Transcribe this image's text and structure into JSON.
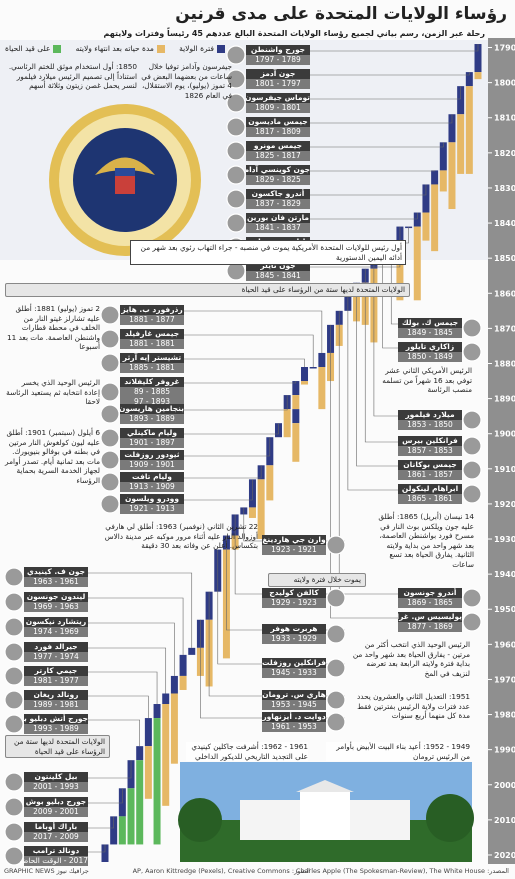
{
  "chart_data": {
    "type": "timeline",
    "title": "رؤساء الولايات المتحدة على مدى قرنين",
    "subtitle": "رحلة عبر الزمن، رسم بياني لجميع رؤساء الولايات المتحدة البالغ عددهم 45 رئيساً وفترات ولايتهم",
    "legend": [
      {
        "name": "فترة الولاية",
        "color": "#2f3b85"
      },
      {
        "name": "مدة حياته بعد انتهاء ولايته",
        "color": "#e6b866"
      },
      {
        "name": "على قيد الحياة",
        "color": "#5cb85c"
      }
    ],
    "ylim": [
      1787,
      2022
    ],
    "yticks": [
      1790,
      1800,
      1810,
      1820,
      1830,
      1840,
      1850,
      1860,
      1870,
      1880,
      1890,
      1900,
      1910,
      1920,
      1930,
      1940,
      1950,
      1960,
      1970,
      1980,
      1990,
      2000,
      2010,
      2020
    ],
    "presidents": [
      {
        "name": "جورج واشنطن",
        "years": [
          "1789 - 1797"
        ],
        "terms": [
          [
            1789,
            1797
          ]
        ],
        "died": 1799
      },
      {
        "name": "جون آدمز",
        "years": [
          "1797 - 1801"
        ],
        "terms": [
          [
            1797,
            1801
          ]
        ],
        "died": 1826
      },
      {
        "name": "توماس جيفرسون",
        "years": [
          "1801 - 1809"
        ],
        "terms": [
          [
            1801,
            1809
          ]
        ],
        "died": 1826
      },
      {
        "name": "جيمس ماديسون",
        "years": [
          "1809 - 1817"
        ],
        "terms": [
          [
            1809,
            1817
          ]
        ],
        "died": 1836
      },
      {
        "name": "جيمس مونرو",
        "years": [
          "1817 - 1825"
        ],
        "terms": [
          [
            1817,
            1825
          ]
        ],
        "died": 1831
      },
      {
        "name": "جون كوينسي آدامز",
        "years": [
          "1825 - 1829"
        ],
        "terms": [
          [
            1825,
            1829
          ]
        ],
        "died": 1848
      },
      {
        "name": "أندرو جاكسون",
        "years": [
          "1829 - 1837"
        ],
        "terms": [
          [
            1829,
            1837
          ]
        ],
        "died": 1845
      },
      {
        "name": "مارتن فان بورين",
        "years": [
          "1837 - 1841"
        ],
        "terms": [
          [
            1837,
            1841
          ]
        ],
        "died": 1862
      },
      {
        "name": "وليام هنري هاريسون",
        "years": [
          "1841 - 1841"
        ],
        "terms": [
          [
            1841,
            1841
          ]
        ],
        "died": 1841
      },
      {
        "name": "جون تايلر",
        "years": [
          "1841 - 1845"
        ],
        "terms": [
          [
            1841,
            1845
          ]
        ],
        "died": 1862
      },
      {
        "name": "جيمس ك. بولك",
        "years": [
          "1845 - 1849"
        ],
        "terms": [
          [
            1845,
            1849
          ]
        ],
        "died": 1849
      },
      {
        "name": "زاكاري تايلور",
        "years": [
          "1849 - 1850"
        ],
        "terms": [
          [
            1849,
            1850
          ]
        ],
        "died": 1850
      },
      {
        "name": "ميلارد فيلمور",
        "years": [
          "1850 - 1853"
        ],
        "terms": [
          [
            1850,
            1853
          ]
        ],
        "died": 1874
      },
      {
        "name": "فرانكلين بيرس",
        "years": [
          "1853 - 1857"
        ],
        "terms": [
          [
            1853,
            1857
          ]
        ],
        "died": 1869
      },
      {
        "name": "جيمس بوكانان",
        "years": [
          "1857 - 1861"
        ],
        "terms": [
          [
            1857,
            1861
          ]
        ],
        "died": 1868
      },
      {
        "name": "ابراهام لينكولن",
        "years": [
          "1861 - 1865"
        ],
        "terms": [
          [
            1861,
            1865
          ]
        ],
        "died": 1865
      },
      {
        "name": "أندرو جونسون",
        "years": [
          "1865 - 1869"
        ],
        "terms": [
          [
            1865,
            1869
          ]
        ],
        "died": 1875
      },
      {
        "name": "يوليسيس س. غرانت",
        "years": [
          "1869 - 1877"
        ],
        "terms": [
          [
            1869,
            1877
          ]
        ],
        "died": 1885
      },
      {
        "name": "رذرفورد ب. هايز",
        "years": [
          "1877 - 1881"
        ],
        "terms": [
          [
            1877,
            1881
          ]
        ],
        "died": 1893
      },
      {
        "name": "جيمس غارفيلد",
        "years": [
          "1881 - 1881"
        ],
        "terms": [
          [
            1881,
            1881
          ]
        ],
        "died": 1881
      },
      {
        "name": "تشيستر إيه آرثر",
        "years": [
          "1881 - 1885"
        ],
        "terms": [
          [
            1881,
            1885
          ]
        ],
        "died": 1886
      },
      {
        "name": "غروفر كليفلاند",
        "years": [
          "1885 - 89",
          "1893 - 97"
        ],
        "terms": [
          [
            1885,
            1889
          ],
          [
            1893,
            1897
          ]
        ],
        "died": 1908
      },
      {
        "name": "بنجامين هاريسون",
        "years": [
          "1889 - 1893"
        ],
        "terms": [
          [
            1889,
            1893
          ]
        ],
        "died": 1901
      },
      {
        "name": "وليام ماكينلي",
        "years": [
          "1897 - 1901"
        ],
        "terms": [
          [
            1897,
            1901
          ]
        ],
        "died": 1901
      },
      {
        "name": "ثيودور روزفلت",
        "years": [
          "1901 - 1909"
        ],
        "terms": [
          [
            1901,
            1909
          ]
        ],
        "died": 1919
      },
      {
        "name": "وليام تافت",
        "years": [
          "1909 - 1913"
        ],
        "terms": [
          [
            1909,
            1913
          ]
        ],
        "died": 1930
      },
      {
        "name": "وودرو ويلسون",
        "years": [
          "1913 - 1921"
        ],
        "terms": [
          [
            1913,
            1921
          ]
        ],
        "died": 1924
      },
      {
        "name": "وارن جي هاردينغ",
        "years": [
          "1921 - 1923"
        ],
        "terms": [
          [
            1921,
            1923
          ]
        ],
        "died": 1923
      },
      {
        "name": "كالفن كوليدج",
        "years": [
          "1923 - 1929"
        ],
        "terms": [
          [
            1923,
            1929
          ]
        ],
        "died": 1933
      },
      {
        "name": "هربرت هوفر",
        "years": [
          "1929 - 1933"
        ],
        "terms": [
          [
            1929,
            1933
          ]
        ],
        "died": 1964
      },
      {
        "name": "فرانكلين روزفلت",
        "years": [
          "1933 - 1945"
        ],
        "terms": [
          [
            1933,
            1945
          ]
        ],
        "died": 1945
      },
      {
        "name": "هاري س. ترومان",
        "years": [
          "1945 - 1953"
        ],
        "terms": [
          [
            1945,
            1953
          ]
        ],
        "died": 1972
      },
      {
        "name": "دوايت د. أيزنهاور",
        "years": [
          "1953 - 1961"
        ],
        "terms": [
          [
            1953,
            1961
          ]
        ],
        "died": 1969
      },
      {
        "name": "جون ف. كينيدي",
        "years": [
          "1961 - 1963"
        ],
        "terms": [
          [
            1961,
            1963
          ]
        ],
        "died": 1963
      },
      {
        "name": "ليندون جونسون",
        "years": [
          "1963 - 1969"
        ],
        "terms": [
          [
            1963,
            1969
          ]
        ],
        "died": 1973
      },
      {
        "name": "ريتشارد نيكسون",
        "years": [
          "1969 - 1974"
        ],
        "terms": [
          [
            1969,
            1974
          ]
        ],
        "died": 1994
      },
      {
        "name": "جيرالد فورد",
        "years": [
          "1974 - 1977"
        ],
        "terms": [
          [
            1974,
            1977
          ]
        ],
        "died": 2006
      },
      {
        "name": "جيمي كارتر",
        "years": [
          "1977 - 1981"
        ],
        "terms": [
          [
            1977,
            1981
          ]
        ],
        "died": null
      },
      {
        "name": "رونالد ريغان",
        "years": [
          "1981 - 1989"
        ],
        "terms": [
          [
            1981,
            1989
          ]
        ],
        "died": 2004
      },
      {
        "name": "جورج أتش دبليو بوش",
        "years": [
          "1989 - 1993"
        ],
        "terms": [
          [
            1989,
            1993
          ]
        ],
        "died": null
      },
      {
        "name": "بيل كلينتون",
        "years": [
          "1993 - 2001"
        ],
        "terms": [
          [
            1993,
            2001
          ]
        ],
        "died": null
      },
      {
        "name": "جورج دبليو بوش",
        "years": [
          "2001 - 2009"
        ],
        "terms": [
          [
            2001,
            2009
          ]
        ],
        "died": null
      },
      {
        "name": "باراك أوباما",
        "years": [
          "2009 - 2017"
        ],
        "terms": [
          [
            2009,
            2017
          ]
        ],
        "died": null
      },
      {
        "name": "دونالد ترامب",
        "years": [
          "2017 - الوقت الحاضر"
        ],
        "terms": [
          [
            2017,
            null
          ]
        ],
        "died": null
      }
    ],
    "annotations": [
      "1850: أول استخدام موثق للختم الرئاسي. استناداً إلى تصميم الرئيس ميلارد فيلمور لنسر يحمل غصن زيتون وثلاثة أسهم",
      "جيفرسون وآدامز توفيا خلال ساعات من بعضهما البعض في 4 تموز (يوليو)، يوم الاستقلال، في العام 1826",
      "أول رئيس للولايات المتحدة الأمريكية يموت في منصبه - جراء التهاب رئوي بعد شهر من أدائه اليمين الدستورية",
      "الولايات المتحدة لديها ستة من الرؤساء على قيد الحياة",
      "2 تموز (يوليو) 1881: أطلق عليه تشارلز غيتو النار من الخلف في محطة قطارات واشنطن العاصمة. مات بعد 11 أسبوعا",
      "الرئيس الوحيد الذي يخسر إعادة انتخابه ثم يستعيد الرئاسة لاحقا",
      "6 أيلول (سبتمبر) 1901: أطلق عليه ليون كولغوش النار مرتين في بطنه في بوفالو بنيويورك. مات بعد ثمانية أيام. تصدر أوامر لجهاز الخدمة السرية بحماية الرؤساء",
      "الرئيس الأمريكي الثاني عشر توفي بعد 16 شهراً من تسلمه منصب الرئاسة",
      "14 نيسان (أبريل) 1865: أطلق عليه جون ويلكس بوث النار في مسرح فورد بواشنطن العاصمة، بعد شهر واحد من بداية ولايته الثانية. يفارق الحياة بعد تسع ساعات",
      "22 تشرين الثاني (نوفمبر) 1963: أطلق لي هارفي أوزوالد النار عليه أثناء مرور موكبه عبر مدينة دالاس بتكساس. أعلن عن وفاته بعد 30 دقيقة",
      "يموت خلال فترة ولايته",
      "الرئيس الوحيد الذي انتخب أكثر من مرتين - يفارق الحياة بعد شهر واحد من بداية فترة ولايته الرابعة بعد تعرضه لنزيف في المخ",
      "1951: التعديل الثاني والعشرون يحدد عدد فترات ولاية الرئيس بفترتين فقط مدة كل منهما أربع سنوات",
      "الولايات المتحدة لديها ستة من الرؤساء على قيد الحياة",
      "1961 - 1962: أشرفت جاكلين كينيدي على التجديد التاريخي للديكور الداخلي",
      "1949 - 1952: أعيد بناء البيت الأبيض بأوامر من الرئيس ترومان"
    ],
    "footer": [
      "المصدر: Charles Apple (The Spokesman-Review), The White House",
      "الصور: AP, Aaron Kittredge (Pexels), Creative Commons",
      "جرافيك نيوز GRAPHIC NEWS"
    ]
  }
}
